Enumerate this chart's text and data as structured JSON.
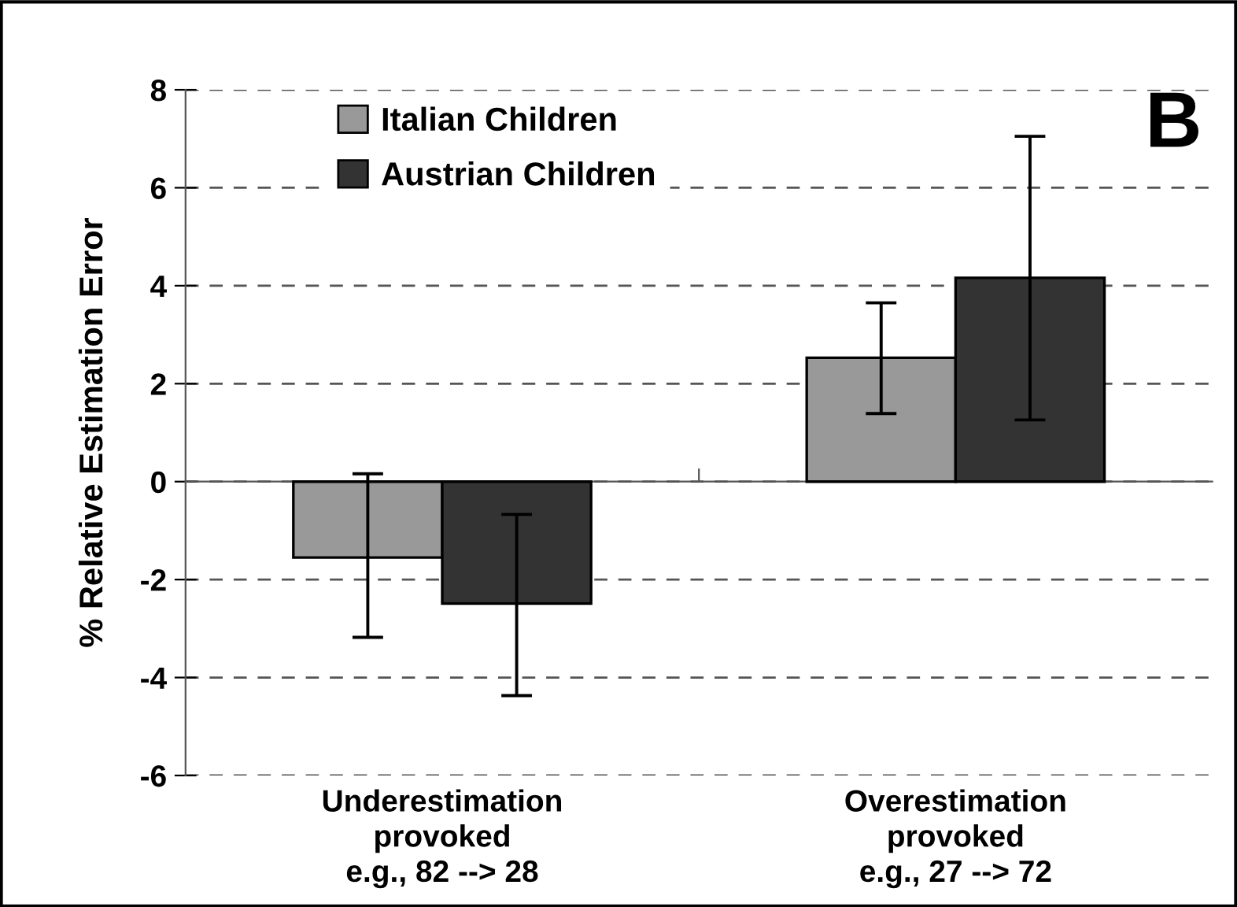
{
  "chart_data": {
    "type": "bar",
    "ylabel": "% Relative Estimation Error",
    "categories": [
      "Underestimation\nprovoked\ne.g., 82 --> 28",
      "Overestimation\nprovoked\ne.g., 27 --> 72"
    ],
    "series": [
      {
        "name": "Italian Children",
        "color": "#999999",
        "values": [
          -1.55,
          2.53
        ],
        "errors": [
          [
            -3.18,
            0.16
          ],
          [
            1.39,
            3.65
          ]
        ]
      },
      {
        "name": "Austrian Children",
        "color": "#333333",
        "values": [
          -2.49,
          4.16
        ],
        "errors": [
          [
            -4.37,
            -0.67
          ],
          [
            1.26,
            7.05
          ]
        ]
      }
    ],
    "ylim": [
      -6,
      8
    ],
    "yticks": [
      -6,
      -4,
      -2,
      0,
      2,
      4,
      6,
      8
    ],
    "grid": "y",
    "legend": "top left",
    "annotations": [
      "B"
    ]
  }
}
